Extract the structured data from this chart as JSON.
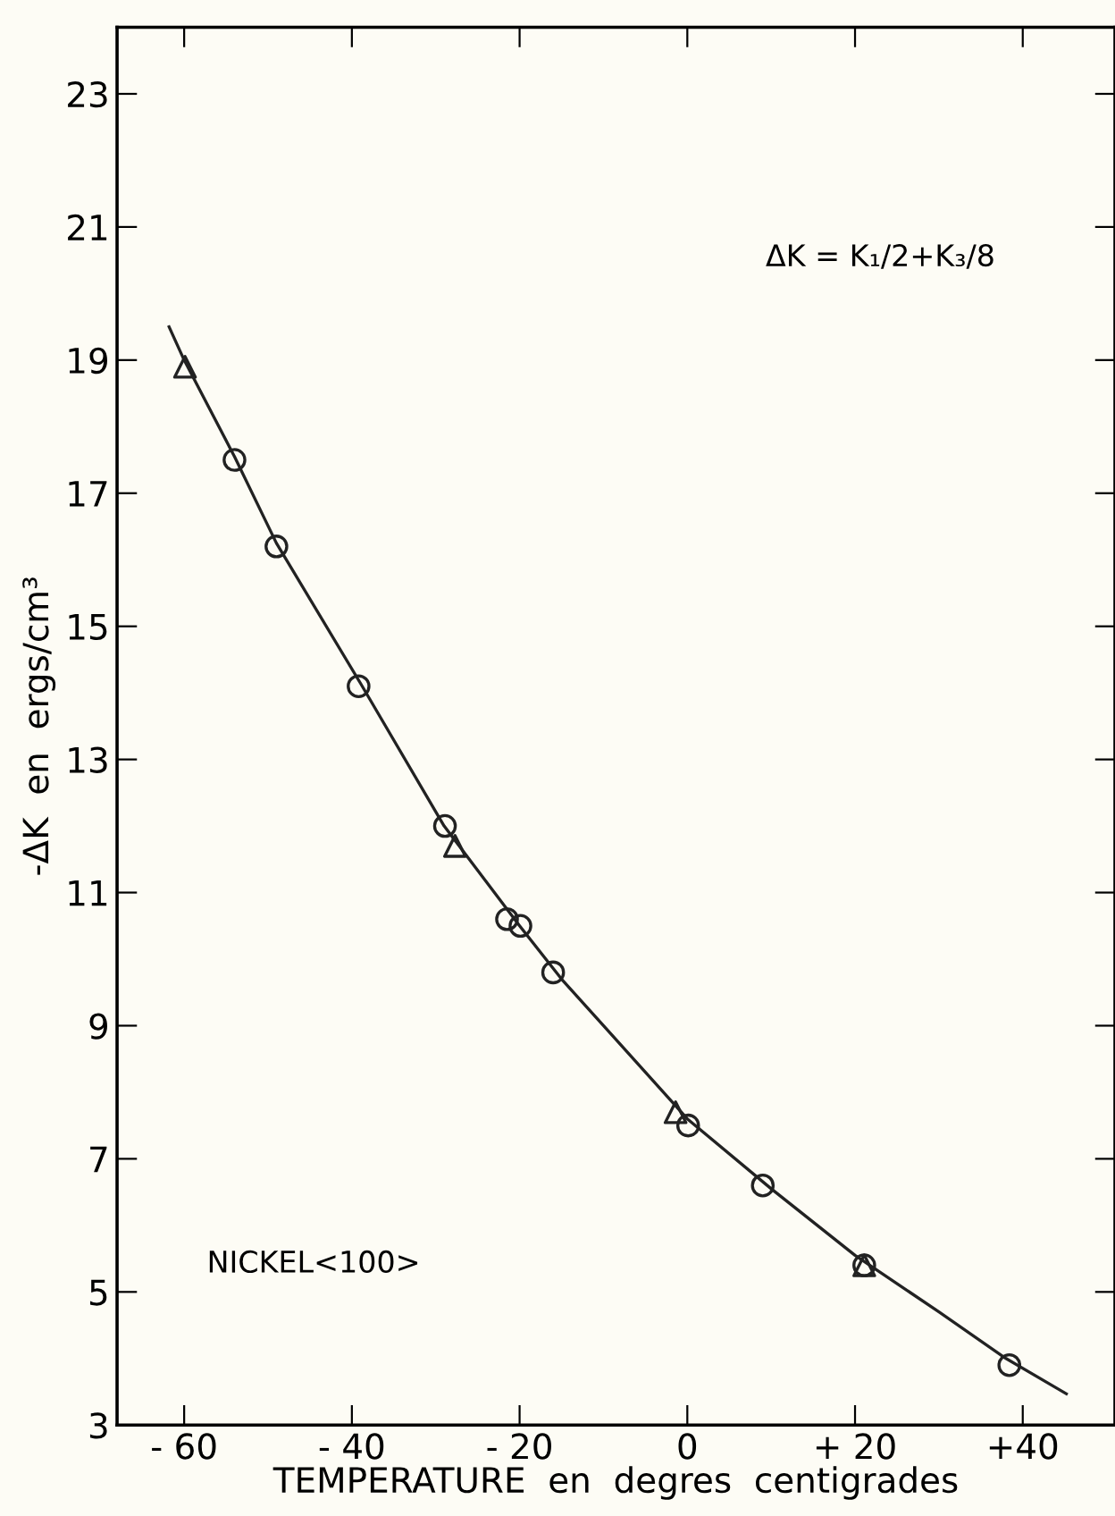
{
  "chart_data": {
    "type": "scatter",
    "xlabel": "TEMPERATURE  en  degres  centigrades",
    "ylabel": "-ΔK  en  ergs/cm³",
    "annotations": [
      "ΔK = K₁/2+K₃/8",
      "NICKEL<100>"
    ],
    "series": [
      {
        "type": "line",
        "color": "#222222",
        "marker": "none",
        "line_style": "solid",
        "x": [
          -61.8,
          -60,
          -54,
          -49,
          -39,
          -29,
          -20,
          -15,
          -10,
          0,
          10,
          20,
          30,
          38,
          45.2
        ],
        "values": [
          19.5,
          19.0,
          17.55,
          16.25,
          14.15,
          12.0,
          10.5,
          9.7,
          9.0,
          7.6,
          6.55,
          5.55,
          4.7,
          4.0,
          3.47
        ]
      },
      {
        "color": "#222222",
        "marker": "circle",
        "x": [
          -54.0,
          -49.0,
          -39.2,
          -28.9,
          -21.5,
          -19.9,
          -16.0,
          0.1,
          9.0,
          21.1,
          38.4
        ],
        "values": [
          17.5,
          16.2,
          14.1,
          12.0,
          10.6,
          10.5,
          9.8,
          7.5,
          6.6,
          5.4,
          3.9
        ]
      },
      {
        "color": "#222222",
        "marker": "triangle",
        "x": [
          -59.9,
          -27.7,
          -1.4,
          21.1
        ],
        "values": [
          18.9,
          11.7,
          7.7,
          5.4
        ]
      }
    ],
    "xlim": [
      -68,
      51
    ],
    "ylim": [
      3,
      24
    ],
    "xticks": [
      {
        "value": -60,
        "label": "- 60"
      },
      {
        "value": -40,
        "label": "- 40"
      },
      {
        "value": -20,
        "label": "- 20"
      },
      0,
      {
        "value": 20,
        "label": "+ 20"
      },
      {
        "value": 40,
        "label": "+40"
      }
    ],
    "yticks": [
      3,
      5,
      7,
      9,
      11,
      13,
      15,
      17,
      19,
      21,
      23
    ],
    "grid": false,
    "legend": false
  }
}
